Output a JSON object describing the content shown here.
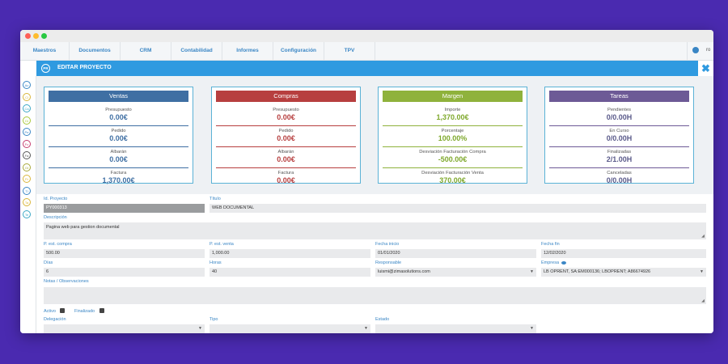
{
  "menu": [
    "Maestros",
    "Documentos",
    "CRM",
    "Contabilidad",
    "Informes",
    "Configuración",
    "TPV"
  ],
  "user": {
    "name": "ro"
  },
  "header": {
    "badge": "PR",
    "title": "EDITAR PROYECTO",
    "close": "✖"
  },
  "sidebar": {
    "icons": [
      {
        "code": "Ac",
        "color": "#3a86c5"
      },
      {
        "code": "Cl",
        "color": "#d9b53a"
      },
      {
        "code": "Ca",
        "color": "#3aa7c5"
      },
      {
        "code": "Di",
        "color": "#a8c83a"
      },
      {
        "code": "Pe",
        "color": "#3a86c5"
      },
      {
        "code": "Fc",
        "color": "#c53a6e"
      },
      {
        "code": "Fa",
        "color": "#555555"
      },
      {
        "code": "Gt",
        "color": "#a8a83a"
      },
      {
        "code": "Pr",
        "color": "#d9b53a"
      },
      {
        "code": "Ti",
        "color": "#3a86c5"
      },
      {
        "code": "Ta",
        "color": "#d9b53a"
      },
      {
        "code": "Te",
        "color": "#3aa7c5"
      }
    ]
  },
  "cards": [
    {
      "title": "Ventas",
      "head_color": "#3f6fa3",
      "value_color": "#3f6fa3",
      "line_color": "#3f6fa3",
      "metrics": [
        {
          "label": "Presupuesto",
          "value": "0.00€"
        },
        {
          "label": "Pedido",
          "value": "0.00€"
        },
        {
          "label": "Albarán",
          "value": "0.00€"
        },
        {
          "label": "Factura",
          "value": "1,370.00€"
        }
      ]
    },
    {
      "title": "Compras",
      "head_color": "#b73f3f",
      "value_color": "#b73f3f",
      "line_color": "#b73f3f",
      "metrics": [
        {
          "label": "Presupuesto",
          "value": "0.00€"
        },
        {
          "label": "Pedido",
          "value": "0.00€"
        },
        {
          "label": "Albarán",
          "value": "0.00€"
        },
        {
          "label": "Factura",
          "value": "0.00€"
        }
      ]
    },
    {
      "title": "Margen",
      "head_color": "#8fb23c",
      "value_color": "#7ea82b",
      "line_color": "#8fb23c",
      "metrics": [
        {
          "label": "Importe",
          "value": "1,370.00€"
        },
        {
          "label": "Porcentaje",
          "value": "100.00%"
        },
        {
          "label": "Desviación Facturación Compra",
          "value": "-500.00€"
        },
        {
          "label": "Desviación Facturación Venta",
          "value": "370.00€"
        }
      ]
    },
    {
      "title": "Tareas",
      "head_color": "#6d5a96",
      "value_color": "#5a5a8a",
      "line_color": "#6d5a96",
      "metrics": [
        {
          "label": "Pendientes",
          "value": "0/0.00H"
        },
        {
          "label": "En Curso",
          "value": "0/0.00H"
        },
        {
          "label": "Finalizadas",
          "value": "2/1.00H"
        },
        {
          "label": "Canceladas",
          "value": "0/0.00H"
        }
      ]
    }
  ],
  "form": {
    "id_label": "Id. Proyecto",
    "id_value": "PY000313",
    "titulo_label": "Título",
    "titulo_value": "WEB DOCUMENTAL",
    "descripcion_label": "Descripción",
    "descripcion_value": "Pagina web para gestion documental",
    "p_compra_label": "P. est. compra",
    "p_compra_value": "500.00",
    "p_venta_label": "P. est. venta",
    "p_venta_value": "1,000.00",
    "fecha_inicio_label": "Fecha inicio",
    "fecha_inicio_value": "01/01/2020",
    "fecha_fin_label": "Fecha fin",
    "fecha_fin_value": "12/02/2020",
    "dias_label": "Días",
    "dias_value": "6",
    "horas_label": "Horas",
    "horas_value": "40",
    "responsable_label": "Responsable",
    "responsable_value": "luismi@zimasolutions.com",
    "empresa_label": "Empresa",
    "empresa_value": "LB OPRENT, SA:EM000136; LBOPRENT; A86674926",
    "notas_label": "Notas / Observaciones",
    "notas_value": "",
    "activo_label": "Activo",
    "finalizado_label": "Finalizado",
    "delegacion_label": "Delegación",
    "tipo_label": "Tipo",
    "estado_label": "Estado"
  }
}
